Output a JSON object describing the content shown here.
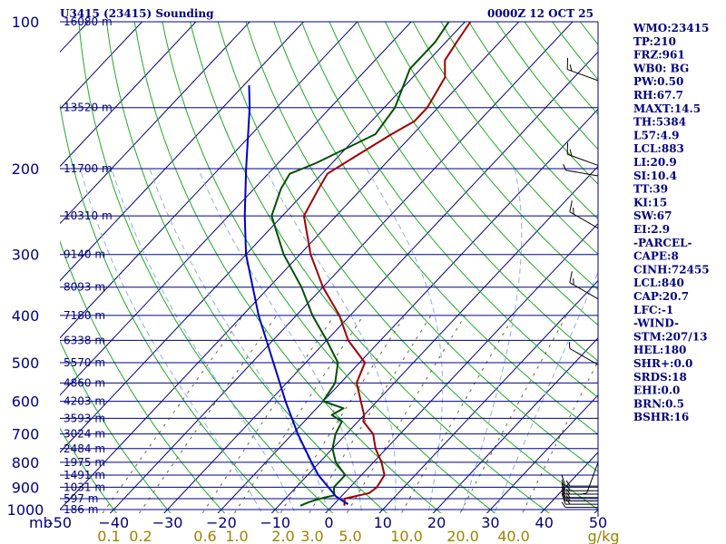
{
  "title": "U3415 (23415) Sounding",
  "datetime": "0000Z 12 OCT 25",
  "colors": {
    "isobar": "#00008b",
    "isotherm": "#000080",
    "dry_adiabat": "#22aa22",
    "moist_adiabat": "#8ab0e6",
    "mixing_ratio": "#666633",
    "temperature": "#a00000",
    "dewpoint": "#005000",
    "parcel": "#0000c0",
    "text": "#000080",
    "mixing_label": "#a08000"
  },
  "chart_data": {
    "type": "line",
    "diagram": "skew-T log-P",
    "pressure_axis": {
      "label": "mb",
      "range": [
        1000,
        100
      ],
      "scale": "log",
      "ticks": [
        100,
        200,
        300,
        400,
        500,
        600,
        700,
        800,
        900,
        1000
      ]
    },
    "temperature_axis": {
      "range": [
        -50,
        50
      ],
      "ticks": [
        -50,
        -40,
        -30,
        -20,
        -10,
        0,
        10,
        20,
        30,
        40,
        50
      ],
      "tick_labels": [
        "-50",
        "−40",
        "−30",
        "−20",
        "−10",
        "0",
        "10",
        "20",
        "30",
        "40",
        "50"
      ]
    },
    "height_levels": [
      {
        "p": 100,
        "label": "16080 m"
      },
      {
        "p": 150,
        "label": "13520 m"
      },
      {
        "p": 200,
        "label": "11700 m"
      },
      {
        "p": 250,
        "label": "10310 m"
      },
      {
        "p": 300,
        "label": "9140 m"
      },
      {
        "p": 350,
        "label": "8093 m"
      },
      {
        "p": 400,
        "label": "7180 m"
      },
      {
        "p": 450,
        "label": "6338 m"
      },
      {
        "p": 500,
        "label": "5570 m"
      },
      {
        "p": 550,
        "label": "4860 m"
      },
      {
        "p": 600,
        "label": "4203 m"
      },
      {
        "p": 650,
        "label": "3593 m"
      },
      {
        "p": 700,
        "label": "3024 m"
      },
      {
        "p": 750,
        "label": "2484 m"
      },
      {
        "p": 800,
        "label": "1975 m"
      },
      {
        "p": 850,
        "label": "1491 m"
      },
      {
        "p": 900,
        "label": "1031 m"
      },
      {
        "p": 950,
        "label": "597 m"
      },
      {
        "p": 1000,
        "label": "186 m"
      }
    ],
    "mixing_ratio_labels": [
      "0.1",
      "0.2",
      "0.6",
      "1.0",
      "2.0",
      "3.0",
      "5.0",
      "10.0",
      "20.0",
      "40.0",
      "g/kg"
    ],
    "mixing_ratio_values": [
      0.1,
      0.2,
      0.6,
      1.0,
      2.0,
      3.0,
      5.0,
      10.0,
      20.0,
      40.0
    ],
    "series": [
      {
        "role": "temperature",
        "points": [
          [
            982,
            2.2
          ],
          [
            950,
            1.0
          ],
          [
            925,
            4.6
          ],
          [
            900,
            5.0
          ],
          [
            850,
            4.3
          ],
          [
            800,
            1.5
          ],
          [
            750,
            -2.0
          ],
          [
            700,
            -5.0
          ],
          [
            660,
            -9.0
          ],
          [
            640,
            -10.0
          ],
          [
            600,
            -13.0
          ],
          [
            550,
            -17.0
          ],
          [
            500,
            -19.0
          ],
          [
            450,
            -26.0
          ],
          [
            400,
            -32.0
          ],
          [
            350,
            -40.0
          ],
          [
            300,
            -48.0
          ],
          [
            250,
            -56.0
          ],
          [
            220,
            -58.0
          ],
          [
            205,
            -59.0
          ],
          [
            190,
            -57.0
          ],
          [
            170,
            -54.0
          ],
          [
            160,
            -52.0
          ],
          [
            150,
            -52.0
          ],
          [
            130,
            -54.0
          ],
          [
            120,
            -57.0
          ],
          [
            110,
            -58.0
          ],
          [
            100,
            -59.0
          ]
        ]
      },
      {
        "role": "dewpoint",
        "points": [
          [
            982,
            -6.0
          ],
          [
            965,
            -5.0
          ],
          [
            945,
            -3.0
          ],
          [
            935,
            -1.5
          ],
          [
            900,
            -3.0
          ],
          [
            850,
            -3.0
          ],
          [
            800,
            -7.0
          ],
          [
            750,
            -10.0
          ],
          [
            700,
            -12.0
          ],
          [
            660,
            -13.0
          ],
          [
            640,
            -16.0
          ],
          [
            620,
            -15.0
          ],
          [
            600,
            -20.0
          ],
          [
            550,
            -21.0
          ],
          [
            500,
            -24.0
          ],
          [
            450,
            -30.0
          ],
          [
            400,
            -37.0
          ],
          [
            350,
            -44.0
          ],
          [
            300,
            -53.0
          ],
          [
            250,
            -62.0
          ],
          [
            220,
            -65.0
          ],
          [
            205,
            -66.0
          ],
          [
            195,
            -63.0
          ],
          [
            170,
            -57.0
          ],
          [
            150,
            -58.0
          ],
          [
            125,
            -62.0
          ],
          [
            110,
            -62.0
          ],
          [
            100,
            -63.0
          ]
        ]
      },
      {
        "role": "parcel",
        "points": [
          [
            975,
            2.6
          ],
          [
            940,
            -1.0
          ],
          [
            900,
            -4.0
          ],
          [
            850,
            -8.0
          ],
          [
            800,
            -11.5
          ],
          [
            700,
            -19.0
          ],
          [
            600,
            -27.0
          ],
          [
            500,
            -36.0
          ],
          [
            400,
            -47.0
          ],
          [
            300,
            -60.0
          ],
          [
            250,
            -67.0
          ],
          [
            200,
            -75.0
          ],
          [
            150,
            -85.0
          ],
          [
            135,
            -89.0
          ]
        ]
      }
    ],
    "wind_barbs": [
      {
        "p": 132,
        "dir": 290,
        "spd": 10
      },
      {
        "p": 197,
        "dir": 290,
        "spd": 10
      },
      {
        "p": 207,
        "dir": 280,
        "spd": 5
      },
      {
        "p": 265,
        "dir": 300,
        "spd": 10
      },
      {
        "p": 370,
        "dir": 300,
        "spd": 10
      },
      {
        "p": 505,
        "dir": 300,
        "spd": 5
      },
      {
        "p": 800,
        "dir": 200,
        "spd": 5
      },
      {
        "p": 895,
        "dir": 270,
        "spd": 10
      },
      {
        "p": 915,
        "dir": 270,
        "spd": 10
      },
      {
        "p": 930,
        "dir": 270,
        "spd": 10
      },
      {
        "p": 945,
        "dir": 270,
        "spd": 10
      },
      {
        "p": 960,
        "dir": 270,
        "spd": 10
      },
      {
        "p": 975,
        "dir": 270,
        "spd": 10
      },
      {
        "p": 990,
        "dir": 270,
        "spd": 5
      }
    ]
  },
  "indices": [
    "WMO:23415",
    "TP:210",
    "FRZ:961",
    "WB0: BG",
    "PW:0.50",
    "RH:67.7",
    "MAXT:14.5",
    "TH:5384",
    "L57:4.9",
    "LCL:883",
    "LI:20.9",
    "SI:10.4",
    "TT:39",
    "KI:15",
    "SW:67",
    "EI:2.9",
    "-PARCEL-",
    "CAPE:8",
    "CINH:72455",
    "LCL:840",
    "CAP:20.7",
    "LFC:-1",
    "-WIND-",
    "STM:207/13",
    "HEL:180",
    "SHR+:0.0",
    "SRDS:18",
    "EHI:0.0",
    "BRN:0.5",
    "BSHR:16"
  ]
}
